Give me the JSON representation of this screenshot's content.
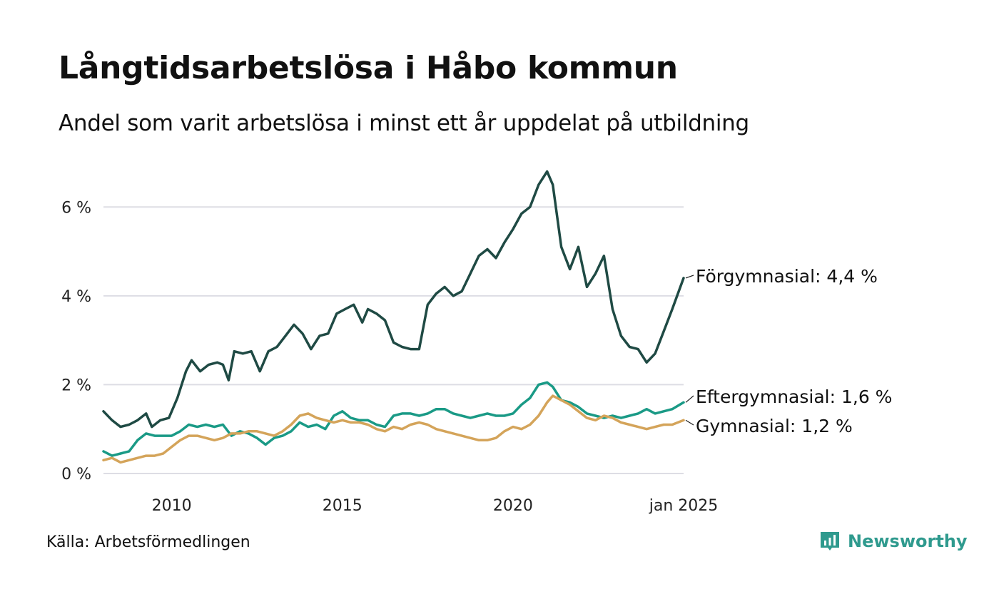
{
  "title": "Långtidsarbetslösa i Håbo kommun",
  "subtitle": "Andel som varit arbetslösa i minst ett år uppdelat på utbildning",
  "source": "Källa: Arbetsförmedlingen",
  "brand": {
    "name": "Newsworthy",
    "icon": "newsworthy-logo-icon",
    "color": "#2f9a8e"
  },
  "chart_data": {
    "type": "line",
    "x_axis": {
      "type": "date",
      "range": [
        "2008-01",
        "2025-01"
      ],
      "tick_labels": [
        "2010",
        "2015",
        "2020",
        "jan 2025"
      ]
    },
    "y_axis": {
      "range": [
        0,
        7
      ],
      "ticks": [
        0,
        2,
        4,
        6
      ],
      "tick_labels": [
        "0 %",
        "2 %",
        "4 %",
        "6 %"
      ],
      "grid": true
    },
    "series": [
      {
        "name": "Förgymnasial",
        "end_label": "Förgymnasial: 4,4 %",
        "color": "#1f4a44",
        "points": [
          [
            "2008-01",
            1.4
          ],
          [
            "2008-04",
            1.2
          ],
          [
            "2008-07",
            1.05
          ],
          [
            "2008-10",
            1.1
          ],
          [
            "2009-01",
            1.2
          ],
          [
            "2009-04",
            1.35
          ],
          [
            "2009-06",
            1.05
          ],
          [
            "2009-09",
            1.2
          ],
          [
            "2009-12",
            1.25
          ],
          [
            "2010-03",
            1.7
          ],
          [
            "2010-06",
            2.3
          ],
          [
            "2010-08",
            2.55
          ],
          [
            "2010-11",
            2.3
          ],
          [
            "2011-02",
            2.45
          ],
          [
            "2011-05",
            2.5
          ],
          [
            "2011-07",
            2.45
          ],
          [
            "2011-09",
            2.1
          ],
          [
            "2011-11",
            2.75
          ],
          [
            "2012-02",
            2.7
          ],
          [
            "2012-05",
            2.75
          ],
          [
            "2012-08",
            2.3
          ],
          [
            "2012-11",
            2.75
          ],
          [
            "2013-02",
            2.85
          ],
          [
            "2013-05",
            3.1
          ],
          [
            "2013-08",
            3.35
          ],
          [
            "2013-11",
            3.15
          ],
          [
            "2014-02",
            2.8
          ],
          [
            "2014-05",
            3.1
          ],
          [
            "2014-08",
            3.15
          ],
          [
            "2014-11",
            3.6
          ],
          [
            "2015-02",
            3.7
          ],
          [
            "2015-05",
            3.8
          ],
          [
            "2015-08",
            3.4
          ],
          [
            "2015-10",
            3.7
          ],
          [
            "2016-01",
            3.6
          ],
          [
            "2016-04",
            3.45
          ],
          [
            "2016-07",
            2.95
          ],
          [
            "2016-10",
            2.85
          ],
          [
            "2017-01",
            2.8
          ],
          [
            "2017-04",
            2.8
          ],
          [
            "2017-07",
            3.8
          ],
          [
            "2017-10",
            4.05
          ],
          [
            "2018-01",
            4.2
          ],
          [
            "2018-04",
            4.0
          ],
          [
            "2018-07",
            4.1
          ],
          [
            "2018-10",
            4.5
          ],
          [
            "2019-01",
            4.9
          ],
          [
            "2019-04",
            5.05
          ],
          [
            "2019-07",
            4.85
          ],
          [
            "2019-10",
            5.2
          ],
          [
            "2020-01",
            5.5
          ],
          [
            "2020-04",
            5.85
          ],
          [
            "2020-07",
            6.0
          ],
          [
            "2020-10",
            6.5
          ],
          [
            "2021-01",
            6.8
          ],
          [
            "2021-03",
            6.5
          ],
          [
            "2021-06",
            5.1
          ],
          [
            "2021-09",
            4.6
          ],
          [
            "2021-12",
            5.1
          ],
          [
            "2022-03",
            4.2
          ],
          [
            "2022-06",
            4.5
          ],
          [
            "2022-09",
            4.9
          ],
          [
            "2022-12",
            3.7
          ],
          [
            "2023-03",
            3.1
          ],
          [
            "2023-06",
            2.85
          ],
          [
            "2023-09",
            2.8
          ],
          [
            "2023-12",
            2.5
          ],
          [
            "2024-03",
            2.7
          ],
          [
            "2024-06",
            3.2
          ],
          [
            "2024-09",
            3.7
          ],
          [
            "2025-01",
            4.4
          ]
        ]
      },
      {
        "name": "Eftergymnasial",
        "end_label": "Eftergymnasial: 1,6 %",
        "color": "#1a9a86",
        "points": [
          [
            "2008-01",
            0.5
          ],
          [
            "2008-04",
            0.4
          ],
          [
            "2008-07",
            0.45
          ],
          [
            "2008-10",
            0.5
          ],
          [
            "2009-01",
            0.75
          ],
          [
            "2009-04",
            0.9
          ],
          [
            "2009-07",
            0.85
          ],
          [
            "2009-10",
            0.85
          ],
          [
            "2010-01",
            0.85
          ],
          [
            "2010-04",
            0.95
          ],
          [
            "2010-07",
            1.1
          ],
          [
            "2010-10",
            1.05
          ],
          [
            "2011-01",
            1.1
          ],
          [
            "2011-04",
            1.05
          ],
          [
            "2011-07",
            1.1
          ],
          [
            "2011-10",
            0.85
          ],
          [
            "2012-01",
            0.95
          ],
          [
            "2012-04",
            0.9
          ],
          [
            "2012-07",
            0.8
          ],
          [
            "2012-10",
            0.65
          ],
          [
            "2013-01",
            0.8
          ],
          [
            "2013-04",
            0.85
          ],
          [
            "2013-07",
            0.95
          ],
          [
            "2013-10",
            1.15
          ],
          [
            "2014-01",
            1.05
          ],
          [
            "2014-04",
            1.1
          ],
          [
            "2014-07",
            1.0
          ],
          [
            "2014-10",
            1.3
          ],
          [
            "2015-01",
            1.4
          ],
          [
            "2015-04",
            1.25
          ],
          [
            "2015-07",
            1.2
          ],
          [
            "2015-10",
            1.2
          ],
          [
            "2016-01",
            1.1
          ],
          [
            "2016-04",
            1.05
          ],
          [
            "2016-07",
            1.3
          ],
          [
            "2016-10",
            1.35
          ],
          [
            "2017-01",
            1.35
          ],
          [
            "2017-04",
            1.3
          ],
          [
            "2017-07",
            1.35
          ],
          [
            "2017-10",
            1.45
          ],
          [
            "2018-01",
            1.45
          ],
          [
            "2018-04",
            1.35
          ],
          [
            "2018-07",
            1.3
          ],
          [
            "2018-10",
            1.25
          ],
          [
            "2019-01",
            1.3
          ],
          [
            "2019-04",
            1.35
          ],
          [
            "2019-07",
            1.3
          ],
          [
            "2019-10",
            1.3
          ],
          [
            "2020-01",
            1.35
          ],
          [
            "2020-04",
            1.55
          ],
          [
            "2020-07",
            1.7
          ],
          [
            "2020-10",
            2.0
          ],
          [
            "2021-01",
            2.05
          ],
          [
            "2021-03",
            1.95
          ],
          [
            "2021-06",
            1.65
          ],
          [
            "2021-09",
            1.6
          ],
          [
            "2021-12",
            1.5
          ],
          [
            "2022-03",
            1.35
          ],
          [
            "2022-06",
            1.3
          ],
          [
            "2022-09",
            1.25
          ],
          [
            "2022-12",
            1.3
          ],
          [
            "2023-03",
            1.25
          ],
          [
            "2023-06",
            1.3
          ],
          [
            "2023-09",
            1.35
          ],
          [
            "2023-12",
            1.45
          ],
          [
            "2024-03",
            1.35
          ],
          [
            "2024-06",
            1.4
          ],
          [
            "2024-09",
            1.45
          ],
          [
            "2025-01",
            1.6
          ]
        ]
      },
      {
        "name": "Gymnasial",
        "end_label": "Gymnasial: 1,2 %",
        "color": "#d4a45a",
        "points": [
          [
            "2008-01",
            0.3
          ],
          [
            "2008-04",
            0.35
          ],
          [
            "2008-07",
            0.25
          ],
          [
            "2008-10",
            0.3
          ],
          [
            "2009-01",
            0.35
          ],
          [
            "2009-04",
            0.4
          ],
          [
            "2009-07",
            0.4
          ],
          [
            "2009-10",
            0.45
          ],
          [
            "2010-01",
            0.6
          ],
          [
            "2010-04",
            0.75
          ],
          [
            "2010-07",
            0.85
          ],
          [
            "2010-10",
            0.85
          ],
          [
            "2011-01",
            0.8
          ],
          [
            "2011-04",
            0.75
          ],
          [
            "2011-07",
            0.8
          ],
          [
            "2011-10",
            0.9
          ],
          [
            "2012-01",
            0.9
          ],
          [
            "2012-04",
            0.95
          ],
          [
            "2012-07",
            0.95
          ],
          [
            "2012-10",
            0.9
          ],
          [
            "2013-01",
            0.85
          ],
          [
            "2013-04",
            0.95
          ],
          [
            "2013-07",
            1.1
          ],
          [
            "2013-10",
            1.3
          ],
          [
            "2014-01",
            1.35
          ],
          [
            "2014-04",
            1.25
          ],
          [
            "2014-07",
            1.2
          ],
          [
            "2014-10",
            1.15
          ],
          [
            "2015-01",
            1.2
          ],
          [
            "2015-04",
            1.15
          ],
          [
            "2015-07",
            1.15
          ],
          [
            "2015-10",
            1.1
          ],
          [
            "2016-01",
            1.0
          ],
          [
            "2016-04",
            0.95
          ],
          [
            "2016-07",
            1.05
          ],
          [
            "2016-10",
            1.0
          ],
          [
            "2017-01",
            1.1
          ],
          [
            "2017-04",
            1.15
          ],
          [
            "2017-07",
            1.1
          ],
          [
            "2017-10",
            1.0
          ],
          [
            "2018-01",
            0.95
          ],
          [
            "2018-04",
            0.9
          ],
          [
            "2018-07",
            0.85
          ],
          [
            "2018-10",
            0.8
          ],
          [
            "2019-01",
            0.75
          ],
          [
            "2019-04",
            0.75
          ],
          [
            "2019-07",
            0.8
          ],
          [
            "2019-10",
            0.95
          ],
          [
            "2020-01",
            1.05
          ],
          [
            "2020-04",
            1.0
          ],
          [
            "2020-07",
            1.1
          ],
          [
            "2020-10",
            1.3
          ],
          [
            "2021-01",
            1.6
          ],
          [
            "2021-03",
            1.75
          ],
          [
            "2021-06",
            1.65
          ],
          [
            "2021-09",
            1.55
          ],
          [
            "2021-12",
            1.4
          ],
          [
            "2022-03",
            1.25
          ],
          [
            "2022-06",
            1.2
          ],
          [
            "2022-09",
            1.3
          ],
          [
            "2022-12",
            1.25
          ],
          [
            "2023-03",
            1.15
          ],
          [
            "2023-06",
            1.1
          ],
          [
            "2023-09",
            1.05
          ],
          [
            "2023-12",
            1.0
          ],
          [
            "2024-03",
            1.05
          ],
          [
            "2024-06",
            1.1
          ],
          [
            "2024-09",
            1.1
          ],
          [
            "2025-01",
            1.2
          ]
        ]
      }
    ]
  }
}
